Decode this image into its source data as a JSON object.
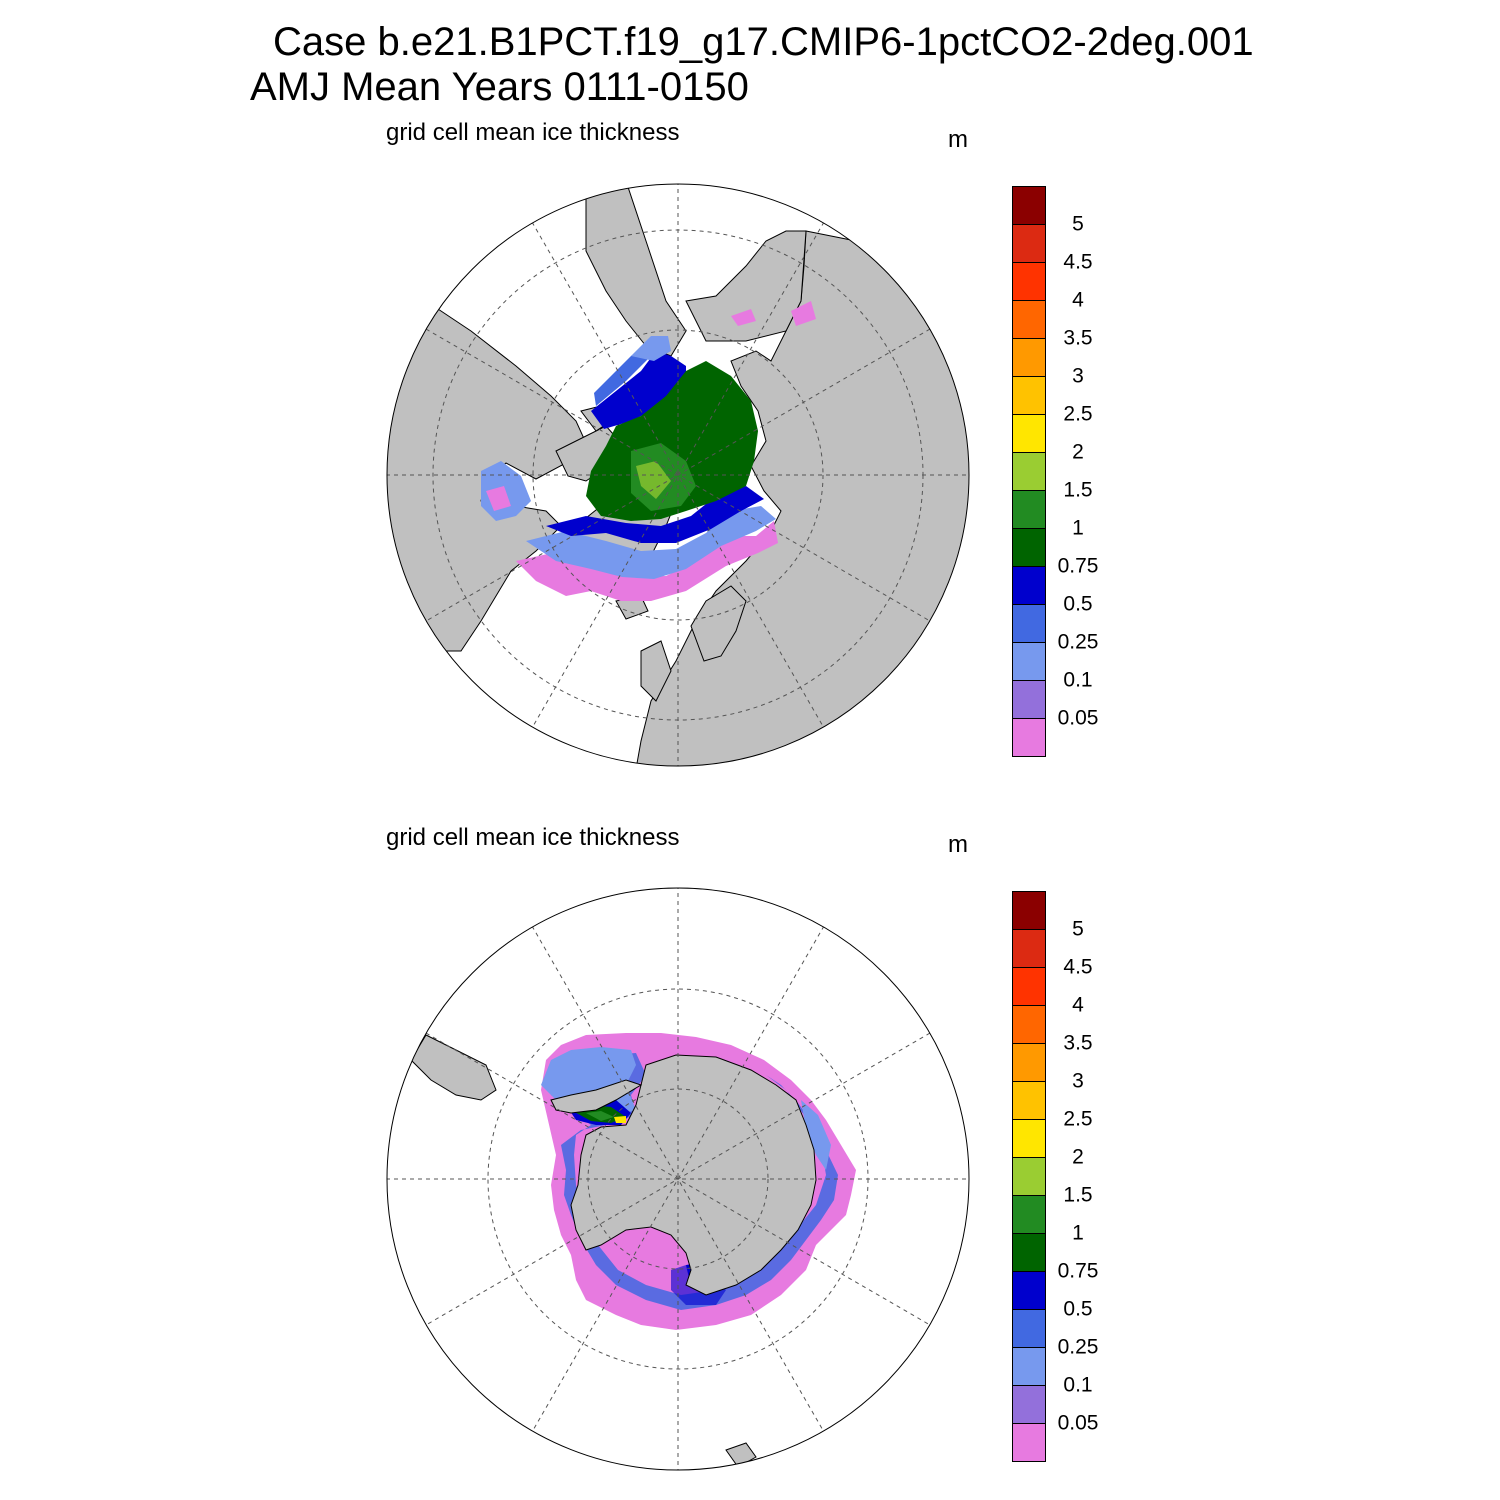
{
  "title": {
    "line1": "Case b.e21.B1PCT.f19_g17.CMIP6-1pctCO2-2deg.001",
    "line2": "AMJ Mean   Years 0111-0150"
  },
  "panels": [
    {
      "id": "north",
      "subtitle": "grid cell mean ice thickness",
      "units": "m"
    },
    {
      "id": "south",
      "subtitle": "grid cell mean ice thickness",
      "units": "m"
    }
  ],
  "colorbar": {
    "labels": [
      "5",
      "4.5",
      "4",
      "3.5",
      "3",
      "2.5",
      "2",
      "1.5",
      "1",
      "0.75",
      "0.5",
      "0.25",
      "0.1",
      "0.05"
    ],
    "colors_top_to_bottom": [
      "#8b0000",
      "#dc2a12",
      "#ff3300",
      "#ff6600",
      "#ff9900",
      "#ffc200",
      "#ffe600",
      "#9acd32",
      "#228b22",
      "#006400",
      "#0000cd",
      "#4169e1",
      "#7799ee",
      "#9370db",
      "#e77ae0"
    ]
  },
  "colors": {
    "land": "#c0c0c0",
    "ocean": "#ffffff",
    "grid": "#555555"
  }
}
